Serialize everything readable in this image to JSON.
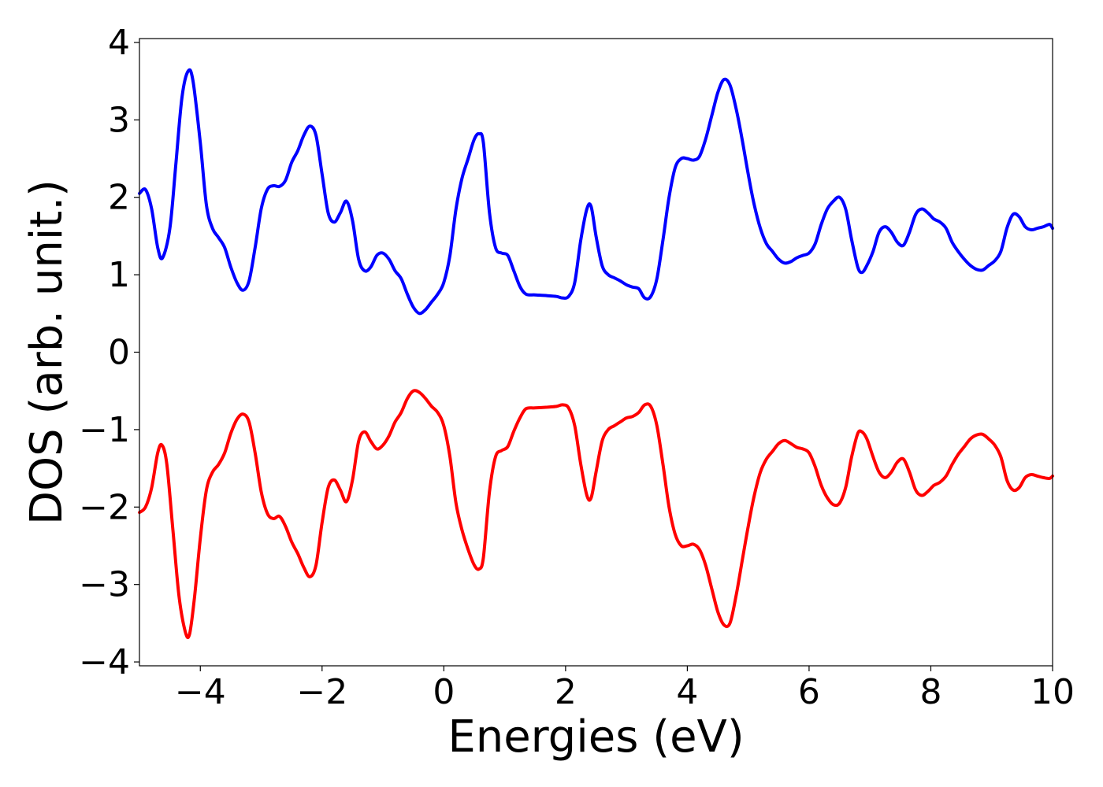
{
  "chart_data": {
    "type": "line",
    "title": "",
    "xlabel": "Energies (eV)",
    "ylabel": "DOS (arb. unit.)",
    "xlim": [
      -5,
      10
    ],
    "ylim": [
      -4.05,
      4.05
    ],
    "grid": false,
    "legend": "none",
    "x_ticks": [
      -4,
      -2,
      0,
      2,
      4,
      6,
      8,
      10
    ],
    "x_tick_labels": [
      "−4",
      "−2",
      "0",
      "2",
      "4",
      "6",
      "8",
      "10"
    ],
    "y_ticks": [
      -4,
      -3,
      -2,
      -1,
      0,
      1,
      2,
      3,
      4
    ],
    "y_tick_labels": [
      "−4",
      "−3",
      "−2",
      "−1",
      "0",
      "1",
      "2",
      "3",
      "4"
    ],
    "series": [
      {
        "color": "#0000ff",
        "points": [
          [
            -5.0,
            2.05
          ],
          [
            -4.9,
            2.1
          ],
          [
            -4.8,
            1.85
          ],
          [
            -4.7,
            1.35
          ],
          [
            -4.62,
            1.22
          ],
          [
            -4.5,
            1.6
          ],
          [
            -4.4,
            2.45
          ],
          [
            -4.3,
            3.3
          ],
          [
            -4.2,
            3.63
          ],
          [
            -4.12,
            3.5
          ],
          [
            -4.0,
            2.7
          ],
          [
            -3.9,
            1.9
          ],
          [
            -3.8,
            1.6
          ],
          [
            -3.7,
            1.48
          ],
          [
            -3.6,
            1.35
          ],
          [
            -3.5,
            1.1
          ],
          [
            -3.4,
            0.9
          ],
          [
            -3.3,
            0.8
          ],
          [
            -3.2,
            0.92
          ],
          [
            -3.1,
            1.35
          ],
          [
            -3.0,
            1.85
          ],
          [
            -2.9,
            2.1
          ],
          [
            -2.8,
            2.15
          ],
          [
            -2.7,
            2.14
          ],
          [
            -2.6,
            2.22
          ],
          [
            -2.5,
            2.45
          ],
          [
            -2.4,
            2.6
          ],
          [
            -2.3,
            2.8
          ],
          [
            -2.2,
            2.92
          ],
          [
            -2.1,
            2.8
          ],
          [
            -2.0,
            2.3
          ],
          [
            -1.9,
            1.8
          ],
          [
            -1.8,
            1.68
          ],
          [
            -1.7,
            1.8
          ],
          [
            -1.6,
            1.95
          ],
          [
            -1.5,
            1.7
          ],
          [
            -1.4,
            1.2
          ],
          [
            -1.3,
            1.05
          ],
          [
            -1.2,
            1.1
          ],
          [
            -1.1,
            1.25
          ],
          [
            -1.0,
            1.28
          ],
          [
            -0.9,
            1.2
          ],
          [
            -0.8,
            1.05
          ],
          [
            -0.7,
            0.95
          ],
          [
            -0.6,
            0.75
          ],
          [
            -0.5,
            0.58
          ],
          [
            -0.4,
            0.5
          ],
          [
            -0.3,
            0.55
          ],
          [
            -0.2,
            0.65
          ],
          [
            -0.1,
            0.75
          ],
          [
            0.0,
            0.9
          ],
          [
            0.1,
            1.25
          ],
          [
            0.2,
            1.85
          ],
          [
            0.3,
            2.25
          ],
          [
            0.4,
            2.5
          ],
          [
            0.5,
            2.75
          ],
          [
            0.58,
            2.82
          ],
          [
            0.65,
            2.7
          ],
          [
            0.75,
            1.8
          ],
          [
            0.85,
            1.35
          ],
          [
            0.95,
            1.28
          ],
          [
            1.05,
            1.25
          ],
          [
            1.15,
            1.05
          ],
          [
            1.25,
            0.85
          ],
          [
            1.35,
            0.75
          ],
          [
            1.5,
            0.74
          ],
          [
            1.7,
            0.73
          ],
          [
            1.85,
            0.72
          ],
          [
            1.95,
            0.7
          ],
          [
            2.05,
            0.72
          ],
          [
            2.15,
            0.9
          ],
          [
            2.25,
            1.45
          ],
          [
            2.35,
            1.85
          ],
          [
            2.42,
            1.88
          ],
          [
            2.5,
            1.5
          ],
          [
            2.6,
            1.12
          ],
          [
            2.7,
            1.0
          ],
          [
            2.8,
            0.96
          ],
          [
            2.9,
            0.92
          ],
          [
            3.0,
            0.87
          ],
          [
            3.1,
            0.84
          ],
          [
            3.2,
            0.82
          ],
          [
            3.3,
            0.7
          ],
          [
            3.4,
            0.72
          ],
          [
            3.5,
            0.95
          ],
          [
            3.6,
            1.45
          ],
          [
            3.7,
            2.0
          ],
          [
            3.8,
            2.38
          ],
          [
            3.9,
            2.5
          ],
          [
            4.0,
            2.5
          ],
          [
            4.1,
            2.48
          ],
          [
            4.2,
            2.53
          ],
          [
            4.3,
            2.75
          ],
          [
            4.4,
            3.05
          ],
          [
            4.5,
            3.35
          ],
          [
            4.6,
            3.52
          ],
          [
            4.7,
            3.45
          ],
          [
            4.8,
            3.15
          ],
          [
            4.9,
            2.75
          ],
          [
            5.0,
            2.3
          ],
          [
            5.1,
            1.9
          ],
          [
            5.2,
            1.6
          ],
          [
            5.3,
            1.4
          ],
          [
            5.4,
            1.3
          ],
          [
            5.5,
            1.2
          ],
          [
            5.6,
            1.15
          ],
          [
            5.7,
            1.17
          ],
          [
            5.8,
            1.22
          ],
          [
            5.9,
            1.25
          ],
          [
            6.0,
            1.28
          ],
          [
            6.1,
            1.4
          ],
          [
            6.2,
            1.65
          ],
          [
            6.3,
            1.85
          ],
          [
            6.4,
            1.95
          ],
          [
            6.5,
            2.0
          ],
          [
            6.6,
            1.85
          ],
          [
            6.7,
            1.45
          ],
          [
            6.8,
            1.1
          ],
          [
            6.87,
            1.03
          ],
          [
            6.95,
            1.12
          ],
          [
            7.05,
            1.3
          ],
          [
            7.15,
            1.55
          ],
          [
            7.25,
            1.62
          ],
          [
            7.35,
            1.55
          ],
          [
            7.45,
            1.42
          ],
          [
            7.55,
            1.38
          ],
          [
            7.65,
            1.55
          ],
          [
            7.75,
            1.78
          ],
          [
            7.85,
            1.85
          ],
          [
            7.95,
            1.8
          ],
          [
            8.05,
            1.72
          ],
          [
            8.15,
            1.68
          ],
          [
            8.25,
            1.6
          ],
          [
            8.35,
            1.42
          ],
          [
            8.45,
            1.3
          ],
          [
            8.55,
            1.2
          ],
          [
            8.65,
            1.12
          ],
          [
            8.75,
            1.07
          ],
          [
            8.85,
            1.06
          ],
          [
            8.95,
            1.12
          ],
          [
            9.05,
            1.18
          ],
          [
            9.15,
            1.3
          ],
          [
            9.25,
            1.6
          ],
          [
            9.35,
            1.78
          ],
          [
            9.45,
            1.75
          ],
          [
            9.55,
            1.62
          ],
          [
            9.65,
            1.58
          ],
          [
            9.75,
            1.6
          ],
          [
            9.85,
            1.62
          ],
          [
            9.95,
            1.65
          ],
          [
            10.0,
            1.6
          ]
        ]
      },
      {
        "color": "#ff0000",
        "points": [
          [
            -5.0,
            -2.07
          ],
          [
            -4.9,
            -2.0
          ],
          [
            -4.8,
            -1.75
          ],
          [
            -4.7,
            -1.3
          ],
          [
            -4.63,
            -1.2
          ],
          [
            -4.55,
            -1.45
          ],
          [
            -4.45,
            -2.3
          ],
          [
            -4.35,
            -3.15
          ],
          [
            -4.25,
            -3.6
          ],
          [
            -4.18,
            -3.65
          ],
          [
            -4.1,
            -3.2
          ],
          [
            -4.0,
            -2.4
          ],
          [
            -3.9,
            -1.78
          ],
          [
            -3.8,
            -1.55
          ],
          [
            -3.7,
            -1.45
          ],
          [
            -3.6,
            -1.3
          ],
          [
            -3.5,
            -1.05
          ],
          [
            -3.4,
            -0.87
          ],
          [
            -3.3,
            -0.8
          ],
          [
            -3.2,
            -0.9
          ],
          [
            -3.1,
            -1.3
          ],
          [
            -3.0,
            -1.8
          ],
          [
            -2.9,
            -2.08
          ],
          [
            -2.8,
            -2.15
          ],
          [
            -2.7,
            -2.12
          ],
          [
            -2.6,
            -2.25
          ],
          [
            -2.5,
            -2.45
          ],
          [
            -2.4,
            -2.6
          ],
          [
            -2.3,
            -2.78
          ],
          [
            -2.2,
            -2.9
          ],
          [
            -2.1,
            -2.75
          ],
          [
            -2.0,
            -2.2
          ],
          [
            -1.9,
            -1.75
          ],
          [
            -1.8,
            -1.65
          ],
          [
            -1.7,
            -1.78
          ],
          [
            -1.6,
            -1.93
          ],
          [
            -1.5,
            -1.65
          ],
          [
            -1.4,
            -1.15
          ],
          [
            -1.3,
            -1.03
          ],
          [
            -1.2,
            -1.15
          ],
          [
            -1.1,
            -1.25
          ],
          [
            -1.0,
            -1.2
          ],
          [
            -0.9,
            -1.08
          ],
          [
            -0.8,
            -0.9
          ],
          [
            -0.7,
            -0.78
          ],
          [
            -0.6,
            -0.6
          ],
          [
            -0.5,
            -0.5
          ],
          [
            -0.4,
            -0.52
          ],
          [
            -0.3,
            -0.6
          ],
          [
            -0.2,
            -0.7
          ],
          [
            -0.1,
            -0.78
          ],
          [
            0.0,
            -0.95
          ],
          [
            0.1,
            -1.35
          ],
          [
            0.2,
            -1.95
          ],
          [
            0.3,
            -2.3
          ],
          [
            0.4,
            -2.55
          ],
          [
            0.5,
            -2.75
          ],
          [
            0.58,
            -2.8
          ],
          [
            0.65,
            -2.65
          ],
          [
            0.75,
            -1.8
          ],
          [
            0.85,
            -1.35
          ],
          [
            0.95,
            -1.27
          ],
          [
            1.05,
            -1.22
          ],
          [
            1.15,
            -1.02
          ],
          [
            1.25,
            -0.85
          ],
          [
            1.35,
            -0.73
          ],
          [
            1.5,
            -0.72
          ],
          [
            1.7,
            -0.71
          ],
          [
            1.85,
            -0.7
          ],
          [
            1.95,
            -0.68
          ],
          [
            2.05,
            -0.72
          ],
          [
            2.15,
            -0.95
          ],
          [
            2.25,
            -1.45
          ],
          [
            2.35,
            -1.85
          ],
          [
            2.42,
            -1.88
          ],
          [
            2.5,
            -1.55
          ],
          [
            2.6,
            -1.15
          ],
          [
            2.7,
            -1.0
          ],
          [
            2.8,
            -0.95
          ],
          [
            2.9,
            -0.9
          ],
          [
            3.0,
            -0.85
          ],
          [
            3.1,
            -0.83
          ],
          [
            3.2,
            -0.78
          ],
          [
            3.3,
            -0.68
          ],
          [
            3.4,
            -0.7
          ],
          [
            3.5,
            -0.95
          ],
          [
            3.6,
            -1.45
          ],
          [
            3.7,
            -2.0
          ],
          [
            3.8,
            -2.35
          ],
          [
            3.9,
            -2.5
          ],
          [
            4.0,
            -2.5
          ],
          [
            4.1,
            -2.48
          ],
          [
            4.2,
            -2.55
          ],
          [
            4.3,
            -2.75
          ],
          [
            4.4,
            -3.05
          ],
          [
            4.5,
            -3.35
          ],
          [
            4.6,
            -3.52
          ],
          [
            4.7,
            -3.5
          ],
          [
            4.8,
            -3.15
          ],
          [
            4.9,
            -2.7
          ],
          [
            5.0,
            -2.25
          ],
          [
            5.1,
            -1.85
          ],
          [
            5.2,
            -1.55
          ],
          [
            5.3,
            -1.38
          ],
          [
            5.4,
            -1.28
          ],
          [
            5.5,
            -1.18
          ],
          [
            5.6,
            -1.14
          ],
          [
            5.7,
            -1.18
          ],
          [
            5.8,
            -1.23
          ],
          [
            5.9,
            -1.25
          ],
          [
            6.0,
            -1.3
          ],
          [
            6.1,
            -1.48
          ],
          [
            6.2,
            -1.72
          ],
          [
            6.3,
            -1.88
          ],
          [
            6.4,
            -1.97
          ],
          [
            6.5,
            -1.95
          ],
          [
            6.6,
            -1.75
          ],
          [
            6.7,
            -1.35
          ],
          [
            6.8,
            -1.05
          ],
          [
            6.87,
            -1.03
          ],
          [
            6.95,
            -1.12
          ],
          [
            7.05,
            -1.35
          ],
          [
            7.15,
            -1.55
          ],
          [
            7.25,
            -1.62
          ],
          [
            7.35,
            -1.55
          ],
          [
            7.45,
            -1.42
          ],
          [
            7.55,
            -1.38
          ],
          [
            7.65,
            -1.55
          ],
          [
            7.75,
            -1.78
          ],
          [
            7.85,
            -1.85
          ],
          [
            7.95,
            -1.8
          ],
          [
            8.05,
            -1.72
          ],
          [
            8.15,
            -1.68
          ],
          [
            8.25,
            -1.6
          ],
          [
            8.35,
            -1.45
          ],
          [
            8.45,
            -1.32
          ],
          [
            8.55,
            -1.22
          ],
          [
            8.65,
            -1.12
          ],
          [
            8.75,
            -1.07
          ],
          [
            8.85,
            -1.06
          ],
          [
            8.95,
            -1.12
          ],
          [
            9.05,
            -1.2
          ],
          [
            9.15,
            -1.35
          ],
          [
            9.25,
            -1.65
          ],
          [
            9.35,
            -1.78
          ],
          [
            9.45,
            -1.75
          ],
          [
            9.55,
            -1.62
          ],
          [
            9.65,
            -1.58
          ],
          [
            9.75,
            -1.6
          ],
          [
            9.85,
            -1.62
          ],
          [
            9.95,
            -1.63
          ],
          [
            10.0,
            -1.6
          ]
        ]
      }
    ]
  }
}
